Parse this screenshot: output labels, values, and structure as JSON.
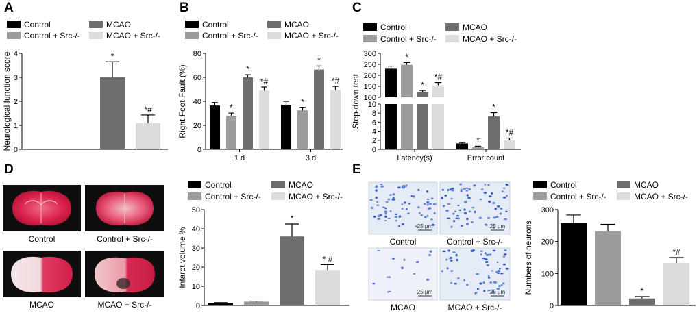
{
  "panels": {
    "A": "A",
    "B": "B",
    "C": "C",
    "D": "D",
    "E": "E"
  },
  "legend": [
    "Control",
    "Control + Src-/-",
    "MCAO",
    "MCAO + Src-/-"
  ],
  "colors": {
    "Control": "#000000",
    "Control + Src-/-": "#9c9c9c",
    "MCAO": "#6e6e6e",
    "MCAO + Src-/-": "#dcdcdc"
  },
  "chart_data": [
    {
      "id": "A",
      "type": "bar",
      "ylabel": "Neurological function score",
      "ylim": [
        0,
        4
      ],
      "yticks": [
        0,
        1,
        2,
        3,
        4
      ],
      "series": [
        {
          "name": "Control",
          "value": 0,
          "err": 0,
          "sig": ""
        },
        {
          "name": "Control + Src-/-",
          "value": 0,
          "err": 0,
          "sig": ""
        },
        {
          "name": "MCAO",
          "value": 3.0,
          "err": 0.65,
          "sig": "*"
        },
        {
          "name": "MCAO + Src-/-",
          "value": 1.1,
          "err": 0.33,
          "sig": "*#"
        }
      ]
    },
    {
      "id": "B",
      "type": "bar",
      "ylabel": "Right Foot Fault (%)",
      "ylim": [
        0,
        80
      ],
      "yticks": [
        0,
        20,
        40,
        60,
        80
      ],
      "categories": [
        "1 d",
        "3 d"
      ],
      "series": [
        {
          "name": "Control",
          "values": [
            36.5,
            37.0
          ],
          "err": [
            2.5,
            3.0
          ],
          "sig": [
            "",
            ""
          ]
        },
        {
          "name": "Control + Src-/-",
          "values": [
            28.0,
            32.5
          ],
          "err": [
            2.2,
            2.5
          ],
          "sig": [
            "*",
            "*"
          ]
        },
        {
          "name": "MCAO",
          "values": [
            60.0,
            66.5
          ],
          "err": [
            2.2,
            3.0
          ],
          "sig": [
            "*",
            "*"
          ]
        },
        {
          "name": "MCAO + Src-/-",
          "values": [
            49.0,
            49.5
          ],
          "err": [
            3.0,
            3.0
          ],
          "sig": [
            "*#",
            "*#"
          ]
        }
      ]
    },
    {
      "id": "C",
      "type": "bar",
      "ylabel": "Step-down test",
      "ylim_upper": [
        100,
        300
      ],
      "yticks_upper": [
        100,
        150,
        200,
        250,
        300
      ],
      "ylim_lower": [
        0,
        10
      ],
      "yticks_lower": [
        0,
        2,
        4,
        6,
        8,
        10
      ],
      "categories": [
        "Latency(s)",
        "Error count"
      ],
      "series": [
        {
          "name": "Control",
          "values": [
            230,
            1.3
          ],
          "err": [
            12,
            0.2
          ],
          "sig": [
            "",
            ""
          ]
        },
        {
          "name": "Control + Src-/-",
          "values": [
            248,
            0.5
          ],
          "err": [
            10,
            0.2
          ],
          "sig": [
            "*",
            "*"
          ]
        },
        {
          "name": "MCAO",
          "values": [
            123,
            7.3
          ],
          "err": [
            8,
            0.8
          ],
          "sig": [
            "*",
            "*"
          ]
        },
        {
          "name": "MCAO + Src-/-",
          "values": [
            155,
            2.1
          ],
          "err": [
            12,
            0.4
          ],
          "sig": [
            "*#",
            "*#"
          ]
        }
      ]
    },
    {
      "id": "D",
      "type": "bar",
      "ylabel": "Infarct volume %",
      "ylim": [
        0,
        50
      ],
      "yticks": [
        0,
        10,
        20,
        30,
        40,
        50
      ],
      "series": [
        {
          "name": "Control",
          "value": 1.2,
          "err": 0.3,
          "sig": ""
        },
        {
          "name": "Control + Src-/-",
          "value": 2.0,
          "err": 0.3,
          "sig": ""
        },
        {
          "name": "MCAO",
          "value": 36.0,
          "err": 6.5,
          "sig": "*"
        },
        {
          "name": "MCAO + Src-/-",
          "value": 18.5,
          "err": 2.8,
          "sig": "* #"
        }
      ]
    },
    {
      "id": "E",
      "type": "bar",
      "ylabel": "Numbers of neurons",
      "ylim": [
        0,
        300
      ],
      "yticks": [
        0,
        100,
        200,
        300
      ],
      "series": [
        {
          "name": "Control",
          "value": 258,
          "err": 25,
          "sig": ""
        },
        {
          "name": "Control + Src-/-",
          "value": 232,
          "err": 22,
          "sig": ""
        },
        {
          "name": "MCAO",
          "value": 22,
          "err": 6,
          "sig": "*"
        },
        {
          "name": "MCAO + Src-/-",
          "value": 133,
          "err": 17,
          "sig": "*#"
        }
      ]
    }
  ],
  "photos_D": {
    "captions": [
      "Control",
      "Control + Src-/-",
      "MCAO",
      "MCAO + Src-/-"
    ]
  },
  "photos_E": {
    "captions": [
      "Control",
      "Control + Src-/-",
      "MCAO",
      "MCAO + Src-/-"
    ],
    "scale_bar": "25 μm"
  }
}
